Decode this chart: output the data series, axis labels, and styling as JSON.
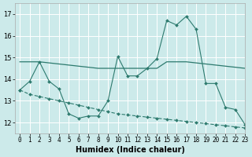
{
  "xlabel": "Humidex (Indice chaleur)",
  "xlim": [
    -0.5,
    23
  ],
  "ylim": [
    11.5,
    17.5
  ],
  "yticks": [
    12,
    13,
    14,
    15,
    16,
    17
  ],
  "xticks": [
    0,
    1,
    2,
    3,
    4,
    5,
    6,
    7,
    8,
    9,
    10,
    11,
    12,
    13,
    14,
    15,
    16,
    17,
    18,
    19,
    20,
    21,
    22,
    23
  ],
  "bg_color": "#cceaea",
  "line_color": "#2d7a6e",
  "grid_color": "#ffffff",
  "line1_x": [
    0,
    1,
    2,
    3,
    4,
    5,
    6,
    7,
    8,
    9,
    10,
    11,
    12,
    13,
    14,
    15,
    16,
    17,
    18,
    19,
    20,
    21,
    22,
    23
  ],
  "line1_y": [
    13.5,
    13.9,
    14.8,
    13.9,
    13.55,
    12.4,
    12.2,
    12.3,
    12.3,
    13.0,
    15.05,
    14.15,
    14.15,
    14.5,
    14.95,
    16.7,
    16.5,
    16.9,
    16.3,
    13.8,
    13.8,
    12.7,
    12.6,
    11.9
  ],
  "line2_x": [
    0,
    1,
    2,
    3,
    4,
    5,
    6,
    7,
    8,
    9,
    10,
    11,
    12,
    13,
    14,
    15,
    16,
    17,
    18,
    19,
    20,
    21,
    22,
    23
  ],
  "line2_y": [
    14.8,
    14.8,
    14.8,
    14.75,
    14.7,
    14.65,
    14.6,
    14.55,
    14.5,
    14.5,
    14.5,
    14.5,
    14.5,
    14.5,
    14.5,
    14.8,
    14.8,
    14.8,
    14.75,
    14.7,
    14.65,
    14.6,
    14.55,
    14.5
  ],
  "line3_x": [
    0,
    1,
    2,
    3,
    4,
    5,
    6,
    7,
    8,
    9,
    10,
    11,
    12,
    13,
    14,
    15,
    16,
    17,
    18,
    19,
    20,
    21,
    22,
    23
  ],
  "line3_y": [
    13.5,
    13.3,
    13.2,
    13.1,
    13.0,
    12.9,
    12.8,
    12.7,
    12.6,
    12.5,
    12.4,
    12.35,
    12.3,
    12.25,
    12.2,
    12.15,
    12.1,
    12.05,
    12.0,
    11.95,
    11.9,
    11.85,
    11.8,
    11.75
  ]
}
